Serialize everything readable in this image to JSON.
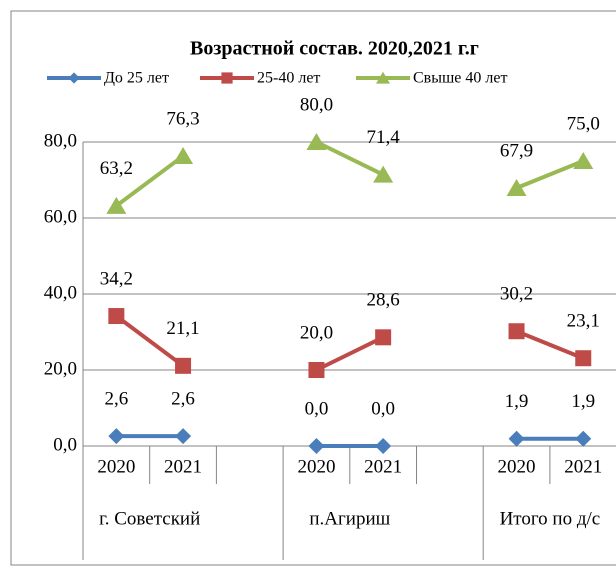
{
  "chart_data": {
    "type": "line",
    "title": "Возрастной состав. 2020,2021 г.г",
    "categories": [
      "2020",
      "2021",
      null,
      "2020",
      "2021",
      null,
      "2020",
      "2021",
      null
    ],
    "groups": [
      "г. Советский",
      "п.Агириш",
      "Итого по д/с"
    ],
    "series": [
      {
        "name": "До 25 лет",
        "color": "#4a7ebb",
        "marker": "diamond",
        "values": [
          2.6,
          2.6,
          null,
          0,
          0,
          null,
          1.9,
          1.9,
          null
        ],
        "value_labels": [
          "2,6",
          "2,6",
          null,
          "0,0",
          "0,0",
          null,
          "1,9",
          "1,9",
          null
        ]
      },
      {
        "name": "25-40 лет",
        "color": "#be4b48",
        "marker": "square",
        "values": [
          34.2,
          21.1,
          null,
          20,
          28.6,
          null,
          30.2,
          23.1,
          null
        ],
        "value_labels": [
          "34,2",
          "21,1",
          null,
          "20,0",
          "28,6",
          null,
          "30,2",
          "23,1",
          null
        ]
      },
      {
        "name": "Свыше 40 лет",
        "color": "#98b954",
        "marker": "triangle",
        "values": [
          63.2,
          76.3,
          null,
          80,
          71.4,
          null,
          67.9,
          75,
          null
        ],
        "value_labels": [
          "63,2",
          "76,3",
          null,
          "80,0",
          "71,4",
          null,
          "67,9",
          "75,0",
          null
        ]
      }
    ],
    "ylim": [
      0,
      80
    ],
    "yticks": [
      {
        "value": 0,
        "label": "0,0"
      },
      {
        "value": 20,
        "label": "20,0"
      },
      {
        "value": 40,
        "label": "40,0"
      },
      {
        "value": 60,
        "label": "60,0"
      },
      {
        "value": 80,
        "label": "80,0"
      }
    ],
    "grid": true,
    "legend": "top"
  }
}
